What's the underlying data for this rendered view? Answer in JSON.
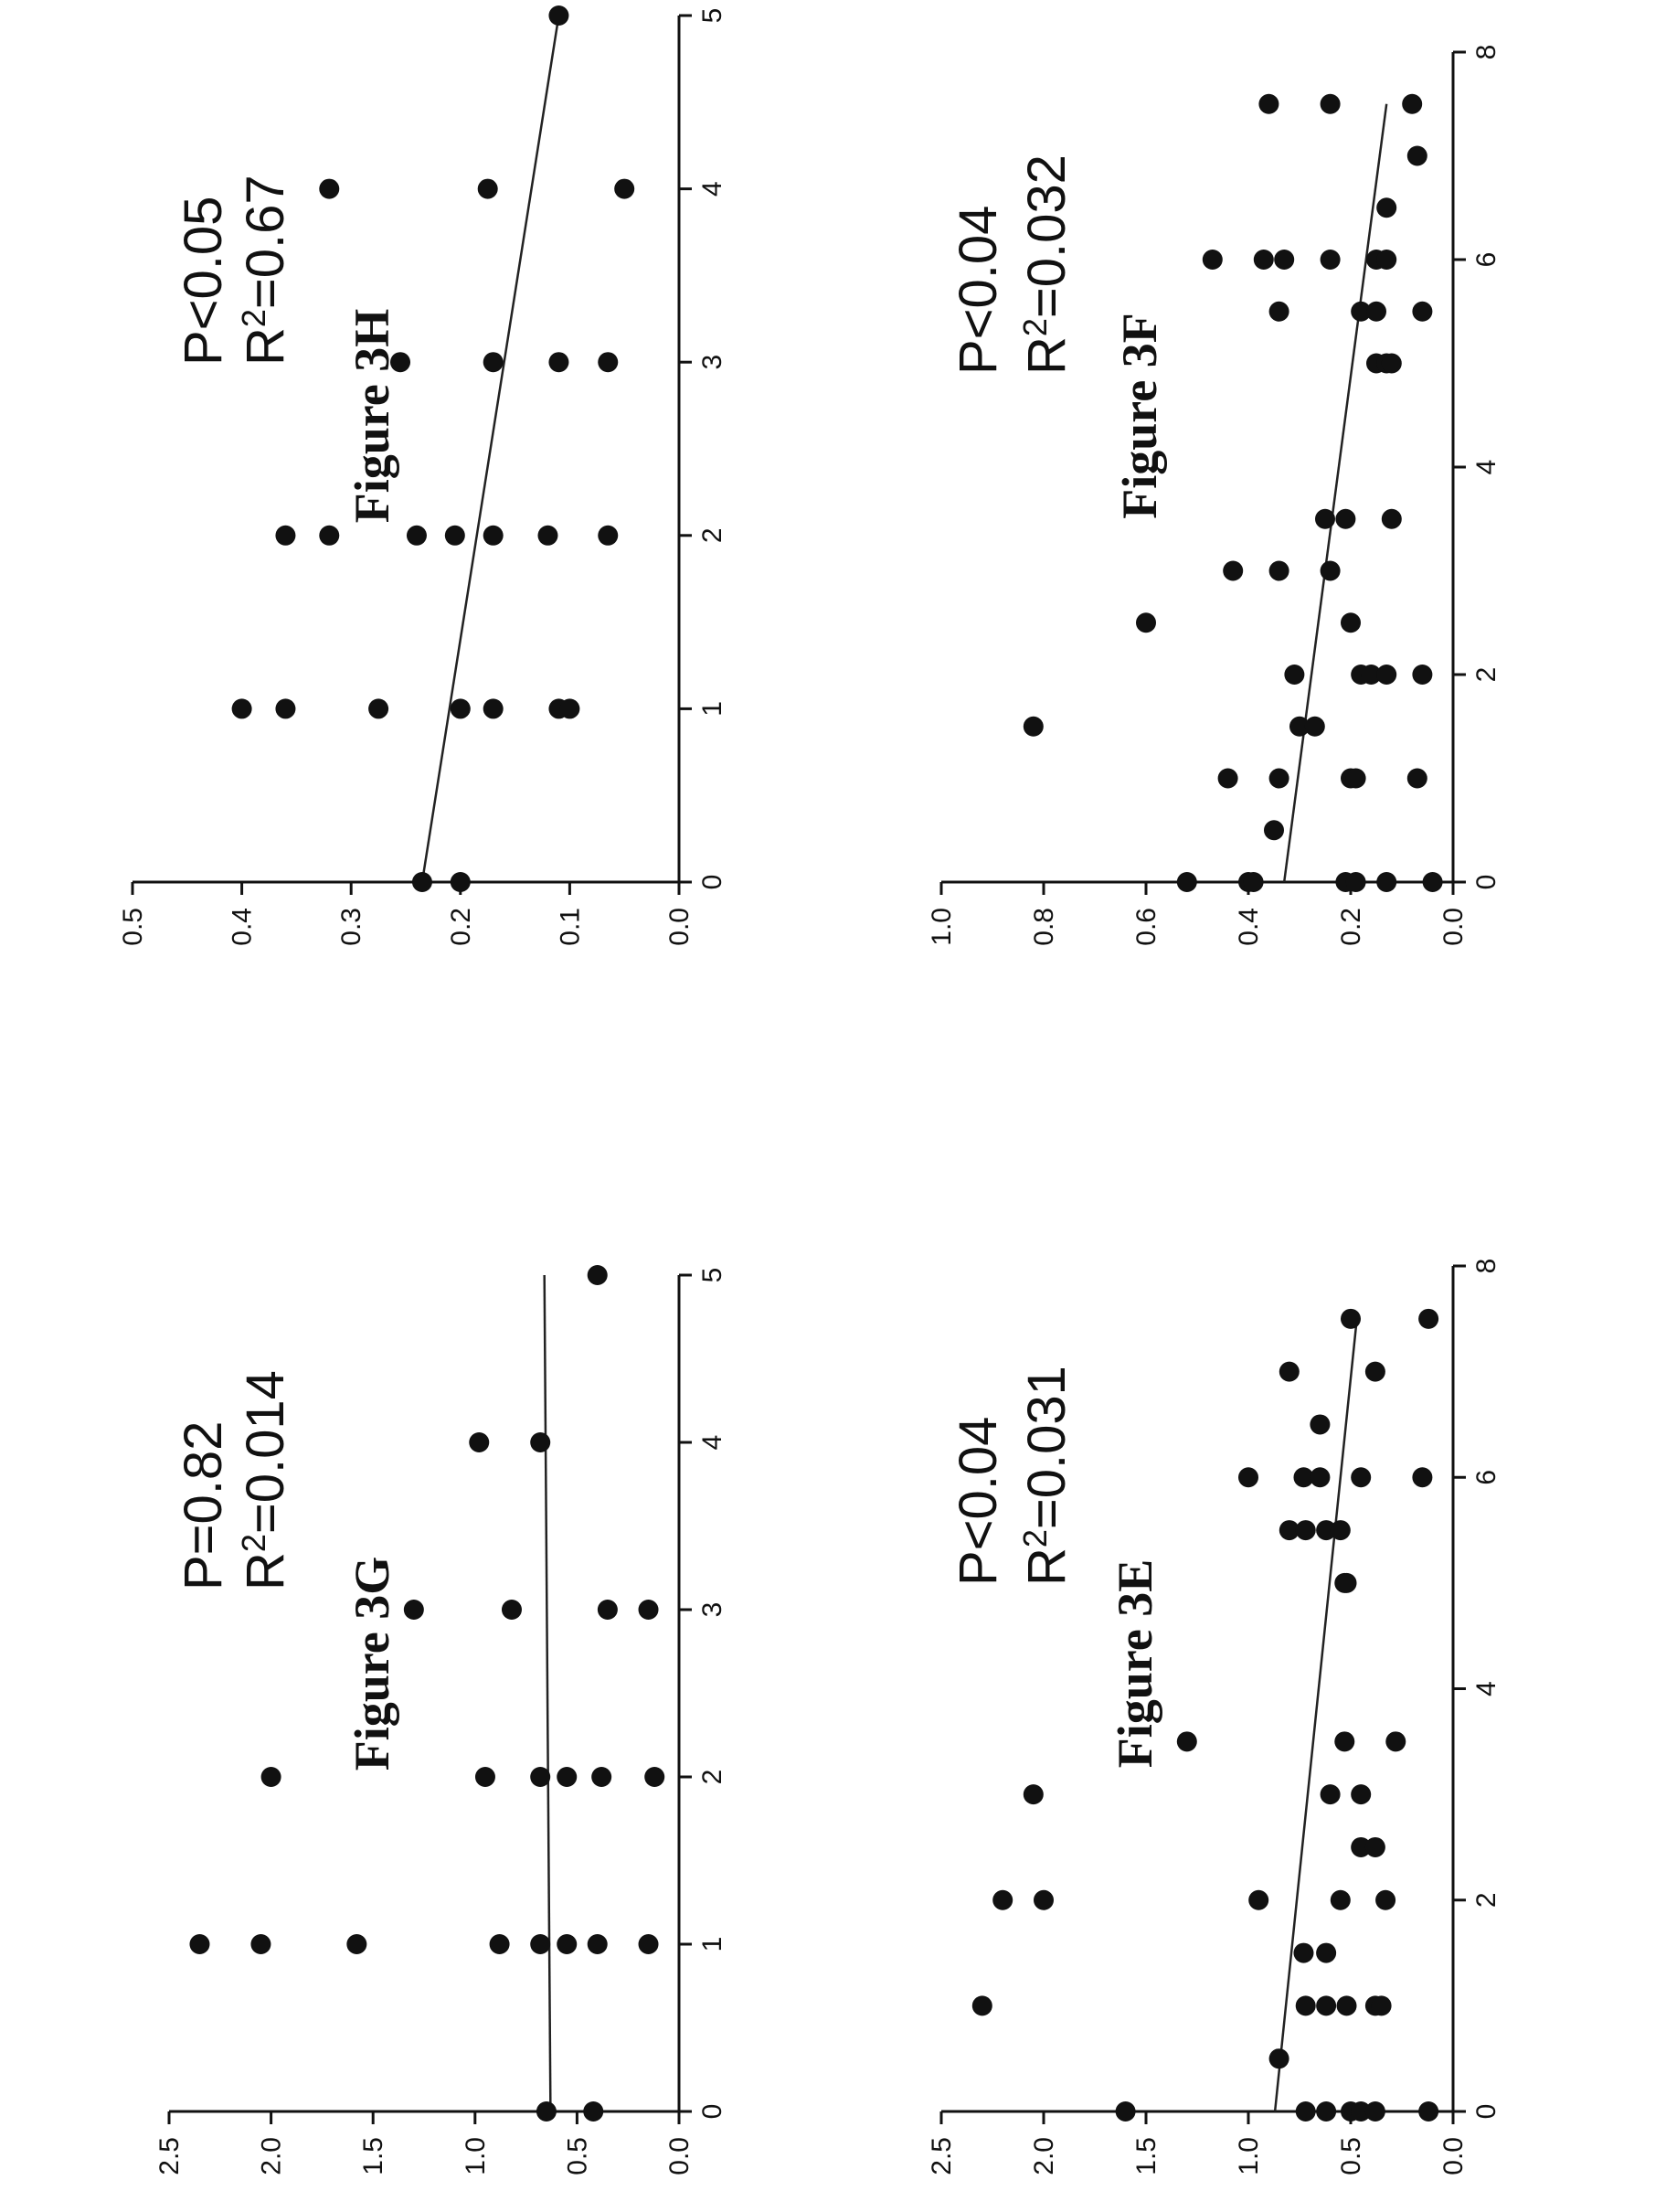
{
  "chart_data": [
    {
      "id": "3F",
      "type": "scatter",
      "caption": "Figure 3F",
      "stats": {
        "p": "P<0.04",
        "r2_prefix": "R",
        "r2_sup": "2",
        "r2_value": "=0.032"
      },
      "xlim": [
        0,
        8
      ],
      "ylim": [
        0,
        1.0
      ],
      "x_ticks": [
        "0",
        "2",
        "4",
        "6",
        "8"
      ],
      "x_tick_values": [
        0,
        2,
        4,
        6,
        8
      ],
      "y_ticks": [
        "0.0",
        "0.2",
        "0.4",
        "0.6",
        "0.8",
        "1.0"
      ],
      "y_tick_values": [
        0,
        0.2,
        0.4,
        0.6,
        0.8,
        1.0
      ],
      "xlabel": "",
      "ylabel": "",
      "grid": false,
      "trendline": {
        "x": [
          0,
          7.5
        ],
        "y": [
          0.33,
          0.13
        ]
      },
      "points": {
        "x": [
          0,
          0,
          0,
          0,
          0,
          0,
          0,
          0.5,
          1,
          1,
          1,
          1,
          1,
          1.5,
          1.5,
          1.5,
          2,
          2,
          2,
          2,
          2,
          2.5,
          2.5,
          3,
          3,
          3,
          3.5,
          3.5,
          3.5,
          5,
          5,
          5,
          5.5,
          5.5,
          5.5,
          5.5,
          6,
          6,
          6,
          6,
          6,
          6,
          6.5,
          7,
          7.5,
          7.5,
          7.5
        ],
        "y": [
          0.52,
          0.4,
          0.39,
          0.21,
          0.19,
          0.13,
          0.04,
          0.35,
          0.44,
          0.34,
          0.2,
          0.19,
          0.07,
          0.82,
          0.3,
          0.27,
          0.31,
          0.18,
          0.16,
          0.13,
          0.06,
          0.6,
          0.2,
          0.43,
          0.34,
          0.24,
          0.25,
          0.21,
          0.12,
          0.15,
          0.13,
          0.12,
          0.34,
          0.18,
          0.15,
          0.06,
          0.47,
          0.37,
          0.33,
          0.24,
          0.15,
          0.13,
          0.13,
          0.07,
          0.36,
          0.24,
          0.08
        ]
      }
    },
    {
      "id": "3E",
      "type": "scatter",
      "caption": "Figure 3E",
      "stats": {
        "p": "P<0.04",
        "r2_prefix": "R",
        "r2_sup": "2",
        "r2_value": "=0.031"
      },
      "xlim": [
        0,
        8
      ],
      "ylim": [
        0,
        2.5
      ],
      "x_ticks": [
        "0",
        "2",
        "4",
        "6",
        "8"
      ],
      "x_tick_values": [
        0,
        2,
        4,
        6,
        8
      ],
      "y_ticks": [
        "0.0",
        "0.5",
        "1.0",
        "1.5",
        "2.0",
        "2.5"
      ],
      "y_tick_values": [
        0,
        0.5,
        1.0,
        1.5,
        2.0,
        2.5
      ],
      "xlabel": "",
      "ylabel": "",
      "grid": false,
      "trendline": {
        "x": [
          0,
          7.5
        ],
        "y": [
          0.87,
          0.47
        ]
      },
      "points": {
        "x": [
          0,
          0,
          0,
          0,
          0,
          0,
          0,
          0.5,
          1,
          1,
          1,
          1,
          1,
          1,
          1.5,
          1.5,
          2,
          2,
          2,
          2,
          2,
          2.5,
          2.5,
          3,
          3,
          3,
          3.5,
          3.5,
          3.5,
          5,
          5,
          5.5,
          5.5,
          5.5,
          5.5,
          6,
          6,
          6,
          6,
          6,
          6.5,
          7,
          7,
          7.5,
          7.5
        ],
        "y": [
          1.6,
          0.72,
          0.62,
          0.5,
          0.45,
          0.38,
          0.12,
          0.85,
          2.3,
          0.72,
          0.62,
          0.52,
          0.38,
          0.35,
          0.73,
          0.62,
          2.2,
          2.0,
          0.95,
          0.55,
          0.33,
          0.45,
          0.38,
          2.05,
          0.6,
          0.45,
          1.3,
          0.53,
          0.28,
          0.53,
          0.52,
          0.8,
          0.72,
          0.62,
          0.55,
          1.0,
          0.73,
          0.65,
          0.45,
          0.15,
          0.65,
          0.8,
          0.38,
          0.5,
          0.12
        ]
      }
    },
    {
      "id": "3H",
      "type": "scatter",
      "caption": "Figure 3H",
      "stats": {
        "p": "P<0.05",
        "r2_prefix": "R",
        "r2_sup": "2",
        "r2_value": "=0.67"
      },
      "xlim": [
        0,
        5
      ],
      "ylim": [
        0,
        0.5
      ],
      "x_ticks": [
        "0",
        "1",
        "2",
        "3",
        "4",
        "5"
      ],
      "x_tick_values": [
        0,
        1,
        2,
        3,
        4,
        5
      ],
      "y_ticks": [
        "0.0",
        "0.1",
        "0.2",
        "0.3",
        "0.4",
        "0.5"
      ],
      "y_tick_values": [
        0,
        0.1,
        0.2,
        0.3,
        0.4,
        0.5
      ],
      "xlabel": "",
      "ylabel": "",
      "grid": false,
      "trendline": {
        "x": [
          0,
          5
        ],
        "y": [
          0.235,
          0.11
        ]
      },
      "points": {
        "x": [
          0,
          0,
          1,
          1,
          1,
          1,
          1,
          1,
          1,
          2,
          2,
          2,
          2,
          2,
          2,
          2,
          3,
          3,
          3,
          3,
          4,
          4,
          4,
          5
        ],
        "y": [
          0.235,
          0.2,
          0.4,
          0.36,
          0.275,
          0.2,
          0.17,
          0.11,
          0.1,
          0.36,
          0.32,
          0.24,
          0.205,
          0.17,
          0.12,
          0.065,
          0.255,
          0.17,
          0.11,
          0.065,
          0.32,
          0.175,
          0.05,
          0.11
        ]
      }
    },
    {
      "id": "3G",
      "type": "scatter",
      "caption": "Figure 3G",
      "stats": {
        "p": "P=0.82",
        "r2_prefix": "R",
        "r2_sup": "2",
        "r2_value": "=0.014"
      },
      "xlim": [
        0,
        5
      ],
      "ylim": [
        0,
        2.5
      ],
      "x_ticks": [
        "0",
        "1",
        "2",
        "3",
        "4",
        "5"
      ],
      "x_tick_values": [
        0,
        1,
        2,
        3,
        4,
        5
      ],
      "y_ticks": [
        "0.0",
        "0.5",
        "1.0",
        "1.5",
        "2.0",
        "2.5"
      ],
      "y_tick_values": [
        0,
        0.5,
        1.0,
        1.5,
        2.0,
        2.5
      ],
      "xlabel": "",
      "ylabel": "",
      "grid": false,
      "trendline": {
        "x": [
          0,
          5
        ],
        "y": [
          0.63,
          0.66
        ]
      },
      "points": {
        "x": [
          0,
          0,
          1,
          1,
          1,
          1,
          1,
          1,
          1,
          1,
          2,
          2,
          2,
          2,
          2,
          2,
          3,
          3,
          3,
          3,
          4,
          4,
          5
        ],
        "y": [
          0.65,
          0.42,
          2.35,
          2.05,
          1.58,
          0.88,
          0.68,
          0.55,
          0.4,
          0.15,
          2.0,
          0.95,
          0.68,
          0.55,
          0.38,
          0.12,
          1.3,
          0.82,
          0.35,
          0.15,
          0.98,
          0.68,
          0.4
        ]
      }
    }
  ]
}
